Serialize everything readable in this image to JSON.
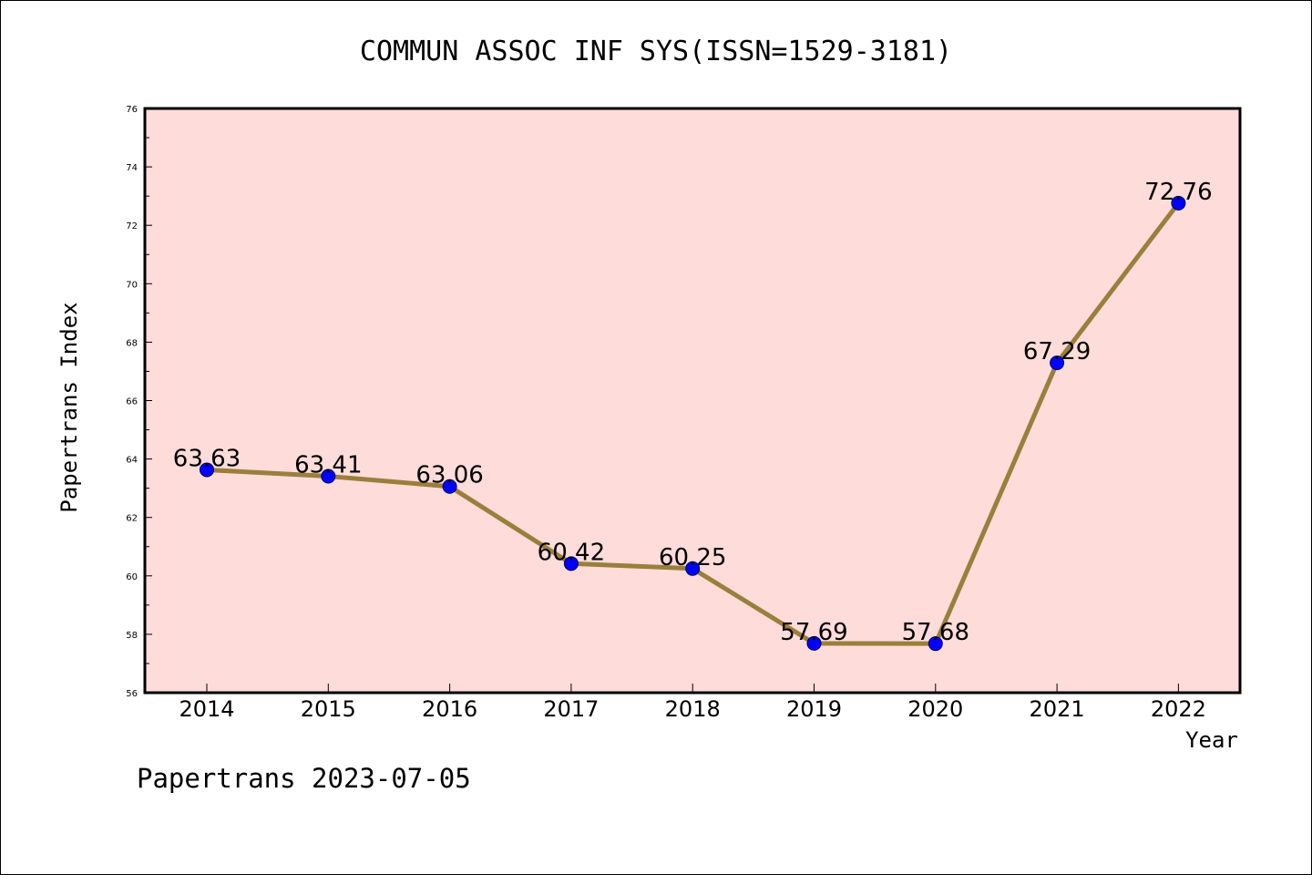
{
  "chart_data": {
    "type": "line",
    "title": "COMMUN ASSOC INF SYS(ISSN=1529-3181)",
    "xlabel": "Year",
    "ylabel": "Papertrans Index",
    "categories": [
      "2014",
      "2015",
      "2016",
      "2017",
      "2018",
      "2019",
      "2020",
      "2021",
      "2022"
    ],
    "series": [
      {
        "values": [
          63.63,
          63.41,
          63.06,
          60.42,
          60.25,
          57.69,
          57.68,
          67.29,
          72.76
        ],
        "labels": [
          "63.63",
          "63.41",
          "63.06",
          "60.42",
          "60.25",
          "57.69",
          "57.68",
          "67.29",
          "72.76"
        ]
      }
    ],
    "ylim": [
      56,
      76
    ],
    "yticks": [
      "56",
      "58",
      "60",
      "62",
      "64",
      "66",
      "68",
      "70",
      "72",
      "74",
      "76"
    ],
    "grid": false,
    "plot_background": "#fddcda",
    "line_color": "#9a7f3c",
    "marker_color": "#0000ff"
  },
  "footer": "Papertrans 2023-07-05"
}
